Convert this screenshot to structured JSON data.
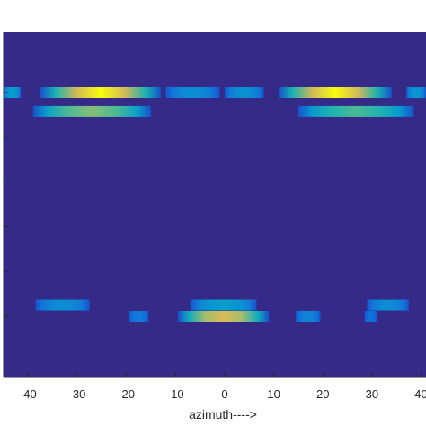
{
  "chart_data": {
    "type": "heatmap",
    "xlabel": "azimuth---->",
    "ylabel": "",
    "title": "",
    "xlim": [
      -45,
      41
    ],
    "x_ticks": [
      -40,
      -30,
      -20,
      -10,
      0,
      10,
      20,
      30,
      40
    ],
    "x_tick_labels": [
      "-40",
      "-30",
      "-20",
      "-10",
      "0",
      "10",
      "20",
      "30",
      "40"
    ],
    "y_ticks": [
      1,
      2,
      3,
      4,
      5,
      6
    ],
    "background_color": "#352a87",
    "colormap": "parula",
    "rows": 7,
    "bands": [
      {
        "row_center": 1.0,
        "half_height": 0.09,
        "segments": [
          {
            "x0": -45,
            "x1": -41.5,
            "peak": 0.4
          },
          {
            "x0": -37.5,
            "x1": -13,
            "peak": 1.0
          },
          {
            "x0": -12,
            "x1": -1,
            "peak": 0.3
          },
          {
            "x0": 0,
            "x1": 8,
            "peak": 0.32
          },
          {
            "x0": 11,
            "x1": 34,
            "peak": 1.0
          },
          {
            "x0": 37,
            "x1": 41,
            "peak": 0.35
          }
        ]
      },
      {
        "row_center": 1.42,
        "half_height": 0.09,
        "segments": [
          {
            "x0": -39,
            "x1": -15,
            "peak": 0.75
          },
          {
            "x0": 15,
            "x1": 38.5,
            "peak": 0.65
          }
        ]
      },
      {
        "row_center": 5.75,
        "half_height": 0.09,
        "segments": [
          {
            "x0": -38.5,
            "x1": -27.5,
            "peak": 0.3
          },
          {
            "x0": -7,
            "x1": 6.5,
            "peak": 0.4
          },
          {
            "x0": 29,
            "x1": 37.5,
            "peak": 0.3
          }
        ]
      },
      {
        "row_center": 6.0,
        "half_height": 0.09,
        "segments": [
          {
            "x0": -19.5,
            "x1": -15.5,
            "peak": 0.2
          },
          {
            "x0": -9.5,
            "x1": 9,
            "peak": 0.9
          },
          {
            "x0": 14.5,
            "x1": 19.5,
            "peak": 0.25
          },
          {
            "x0": 28.5,
            "x1": 31,
            "peak": 0.15
          }
        ]
      }
    ]
  }
}
